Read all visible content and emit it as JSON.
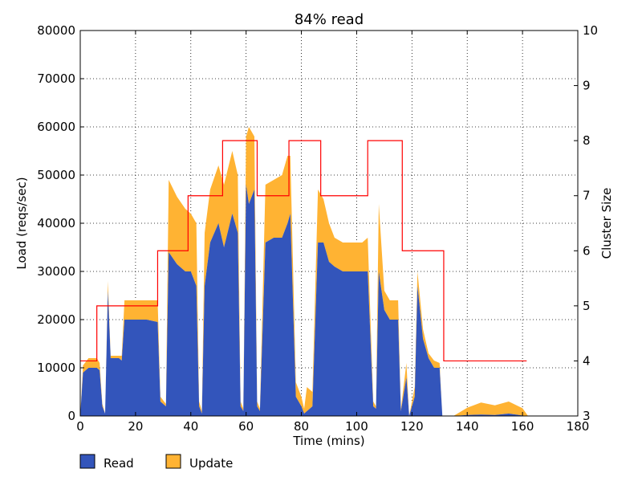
{
  "chart_data": {
    "type": "area",
    "title": "84% read",
    "xlabel": "Time (mins)",
    "ylabel": "Load (reqs/sec)",
    "y2label": "Cluster Size",
    "xlim": [
      0,
      180
    ],
    "ylim": [
      0,
      80000
    ],
    "y2lim": [
      3,
      10
    ],
    "xticks": [
      0,
      20,
      40,
      60,
      80,
      100,
      120,
      140,
      160,
      180
    ],
    "yticks": [
      0,
      10000,
      20000,
      30000,
      40000,
      50000,
      60000,
      70000,
      80000
    ],
    "y2ticks": [
      3,
      4,
      5,
      6,
      7,
      8,
      9,
      10
    ],
    "grid": true,
    "stacked": true,
    "legend_position": "bottom-left",
    "series": [
      {
        "name": "Read",
        "color": "#3355bb",
        "points": [
          [
            0,
            0
          ],
          [
            1,
            9000
          ],
          [
            3,
            10000
          ],
          [
            6,
            10000
          ],
          [
            7,
            9500
          ],
          [
            8,
            2000
          ],
          [
            9,
            500
          ],
          [
            10,
            26000
          ],
          [
            11,
            12000
          ],
          [
            14,
            12000
          ],
          [
            15,
            11500
          ],
          [
            16,
            20000
          ],
          [
            20,
            20000
          ],
          [
            24,
            20000
          ],
          [
            28,
            19500
          ],
          [
            29,
            3000
          ],
          [
            31,
            2000
          ],
          [
            32,
            34000
          ],
          [
            35,
            31500
          ],
          [
            38,
            30000
          ],
          [
            40,
            30000
          ],
          [
            42,
            27000
          ],
          [
            43,
            2000
          ],
          [
            44,
            500
          ],
          [
            45,
            27000
          ],
          [
            47,
            36000
          ],
          [
            50,
            40000
          ],
          [
            52,
            35000
          ],
          [
            55,
            42000
          ],
          [
            57,
            38000
          ],
          [
            58,
            2000
          ],
          [
            59,
            1000
          ],
          [
            60,
            48000
          ],
          [
            61,
            44000
          ],
          [
            63,
            47000
          ],
          [
            64,
            2000
          ],
          [
            65,
            1000
          ],
          [
            67,
            36000
          ],
          [
            70,
            37000
          ],
          [
            73,
            37000
          ],
          [
            75,
            40000
          ],
          [
            76,
            42000
          ],
          [
            78,
            4000
          ],
          [
            80,
            2000
          ],
          [
            81,
            500
          ],
          [
            82,
            1000
          ],
          [
            84,
            2000
          ],
          [
            86,
            36000
          ],
          [
            88,
            36000
          ],
          [
            90,
            32000
          ],
          [
            92,
            31000
          ],
          [
            95,
            30000
          ],
          [
            98,
            30000
          ],
          [
            102,
            30000
          ],
          [
            104,
            30000
          ],
          [
            106,
            2000
          ],
          [
            107,
            1500
          ],
          [
            108,
            30000
          ],
          [
            110,
            22000
          ],
          [
            112,
            20000
          ],
          [
            115,
            20000
          ],
          [
            116,
            1000
          ],
          [
            118,
            8000
          ],
          [
            119,
            0
          ],
          [
            121,
            4000
          ],
          [
            122,
            27000
          ],
          [
            124,
            16000
          ],
          [
            126,
            12000
          ],
          [
            128,
            10000
          ],
          [
            130,
            10000
          ],
          [
            131,
            0
          ],
          [
            135,
            0
          ],
          [
            140,
            200
          ],
          [
            145,
            300
          ],
          [
            150,
            200
          ],
          [
            155,
            500
          ],
          [
            160,
            100
          ],
          [
            162,
            0
          ]
        ]
      },
      {
        "name": "Update",
        "color": "#ffb333",
        "points": [
          [
            0,
            0
          ],
          [
            1,
            1500
          ],
          [
            3,
            2000
          ],
          [
            6,
            2000
          ],
          [
            7,
            1500
          ],
          [
            8,
            500
          ],
          [
            9,
            0
          ],
          [
            10,
            2000
          ],
          [
            11,
            500
          ],
          [
            14,
            500
          ],
          [
            15,
            1000
          ],
          [
            16,
            4000
          ],
          [
            20,
            4000
          ],
          [
            24,
            4000
          ],
          [
            28,
            4500
          ],
          [
            29,
            1000
          ],
          [
            31,
            500
          ],
          [
            32,
            15000
          ],
          [
            35,
            14000
          ],
          [
            38,
            13000
          ],
          [
            40,
            12000
          ],
          [
            42,
            13000
          ],
          [
            43,
            1000
          ],
          [
            44,
            500
          ],
          [
            45,
            11000
          ],
          [
            47,
            11000
          ],
          [
            50,
            12000
          ],
          [
            52,
            13000
          ],
          [
            55,
            13000
          ],
          [
            57,
            12000
          ],
          [
            58,
            1000
          ],
          [
            59,
            500
          ],
          [
            60,
            10000
          ],
          [
            61,
            16000
          ],
          [
            63,
            11000
          ],
          [
            64,
            1000
          ],
          [
            65,
            500
          ],
          [
            67,
            12000
          ],
          [
            70,
            12000
          ],
          [
            73,
            13000
          ],
          [
            75,
            14000
          ],
          [
            76,
            12000
          ],
          [
            78,
            3000
          ],
          [
            80,
            2000
          ],
          [
            81,
            1000
          ],
          [
            82,
            5000
          ],
          [
            84,
            3000
          ],
          [
            86,
            11000
          ],
          [
            88,
            9000
          ],
          [
            90,
            8000
          ],
          [
            92,
            6000
          ],
          [
            95,
            6000
          ],
          [
            98,
            6000
          ],
          [
            102,
            6000
          ],
          [
            104,
            7000
          ],
          [
            106,
            1000
          ],
          [
            107,
            500
          ],
          [
            108,
            14000
          ],
          [
            110,
            4000
          ],
          [
            112,
            4000
          ],
          [
            115,
            4000
          ],
          [
            116,
            500
          ],
          [
            118,
            3000
          ],
          [
            119,
            0
          ],
          [
            121,
            2000
          ],
          [
            122,
            3000
          ],
          [
            124,
            2000
          ],
          [
            126,
            1000
          ],
          [
            128,
            1500
          ],
          [
            130,
            1000
          ],
          [
            131,
            0
          ],
          [
            135,
            0
          ],
          [
            140,
            1500
          ],
          [
            145,
            2500
          ],
          [
            150,
            2000
          ],
          [
            155,
            2500
          ],
          [
            160,
            1500
          ],
          [
            162,
            0
          ]
        ]
      }
    ],
    "step_series": {
      "name": "Cluster Size",
      "color": "#ff0000",
      "axis": "right",
      "steps": [
        [
          0,
          4
        ],
        [
          6,
          5
        ],
        [
          28,
          6
        ],
        [
          39,
          7
        ],
        [
          51.5,
          8
        ],
        [
          64,
          7
        ],
        [
          75.5,
          8
        ],
        [
          87,
          7
        ],
        [
          104,
          8
        ],
        [
          116.5,
          6
        ],
        [
          131.5,
          4
        ],
        [
          161.5,
          4
        ]
      ]
    }
  }
}
